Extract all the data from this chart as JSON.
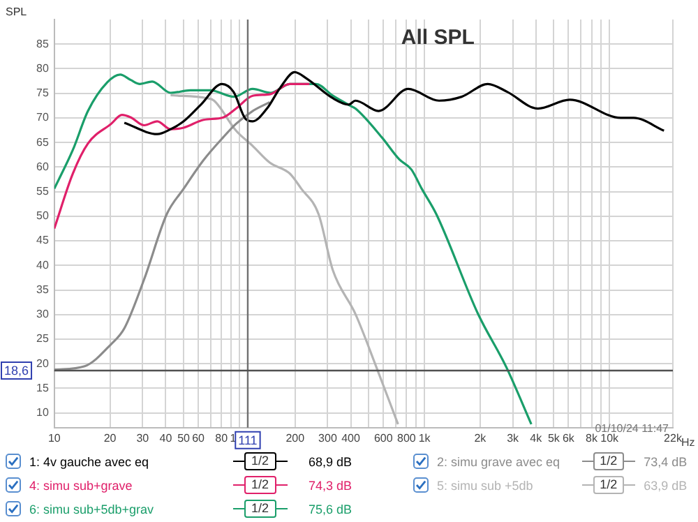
{
  "chart_data": {
    "type": "line",
    "title": "All SPL",
    "ylabel": "SPL",
    "log": "x",
    "grid": true,
    "legend": "bottom",
    "marker": "none",
    "line_style": "solid",
    "xlim": [
      10,
      22000
    ],
    "ylim": [
      7,
      90
    ],
    "xticks": [
      10,
      20,
      30,
      40,
      50,
      60,
      {
        "value": 70,
        "label": null
      },
      80,
      {
        "value": 90,
        "label": null
      },
      100,
      200,
      300,
      400,
      {
        "value": 500,
        "label": null
      },
      600,
      {
        "value": 700,
        "label": null
      },
      800,
      {
        "value": 900,
        "label": null
      },
      {
        "value": 1000,
        "label": "1k"
      },
      {
        "value": 2000,
        "label": "2k"
      },
      {
        "value": 3000,
        "label": "3k"
      },
      {
        "value": 4000,
        "label": "4k"
      },
      {
        "value": 5000,
        "label": "5k"
      },
      {
        "value": 6000,
        "label": "6k"
      },
      {
        "value": 7000,
        "label": null
      },
      {
        "value": 8000,
        "label": "8k"
      },
      {
        "value": 9000,
        "label": null
      },
      {
        "value": 10000,
        "label": "10k"
      },
      {
        "value": 22000,
        "label": "22k"
      }
    ],
    "xlabel": "Hz",
    "yticks": [
      10,
      15,
      20,
      25,
      30,
      35,
      40,
      45,
      50,
      55,
      60,
      65,
      70,
      75,
      80,
      85
    ],
    "series": [
      {
        "name": "1: 4v gauche avec eq",
        "color": "#000000",
        "x": [
          23.9,
          36,
          42.5,
          50,
          62,
          80.6,
          93,
          108,
          118,
          141,
          166,
          199,
          231,
          320,
          390,
          424,
          565,
          817,
          1200,
          1590,
          2200,
          2800,
          4100,
          6100,
          11500,
          13500,
          19700
        ],
        "values": [
          69.0,
          66.7,
          67.7,
          69.3,
          72.7,
          76.9,
          75.3,
          69.8,
          69.3,
          71.9,
          76.1,
          79.3,
          78.0,
          74.0,
          72.7,
          73.5,
          71.4,
          75.9,
          73.5,
          74.3,
          76.9,
          75.3,
          71.9,
          73.7,
          70.0,
          70.0,
          67.4
        ]
      },
      {
        "name": "2: simu grave avec eq",
        "color": "#8c8c8c",
        "x": [
          10,
          14.6,
          20.3,
          23.9,
          30.6,
          40.5,
          50,
          64,
          82,
          96,
          118,
          146
        ],
        "values": [
          18.8,
          19.5,
          24.0,
          27.2,
          37.2,
          50.4,
          55.6,
          61.4,
          66.1,
          68.8,
          71.4,
          73.2
        ]
      },
      {
        "name": "4: simu  sub+grave",
        "color": "#e0206a",
        "x": [
          10,
          12.6,
          15.2,
          20.3,
          23.2,
          25.9,
          30.6,
          36,
          42.5,
          50,
          64,
          82,
          96,
          118,
          146,
          187,
          239
        ],
        "values": [
          47.5,
          58.7,
          64.8,
          68.8,
          70.6,
          70.1,
          68.5,
          69.3,
          67.7,
          68.0,
          69.6,
          70.1,
          71.9,
          74.5,
          74.8,
          76.9,
          76.9
        ]
      },
      {
        "name": "5: simu sub +5db",
        "color": "#b4b4b4",
        "x": [
          42.5,
          67,
          73,
          96,
          118,
          146,
          187,
          216,
          268,
          320,
          424,
          550,
          720
        ],
        "values": [
          74.6,
          74.0,
          73.5,
          67.4,
          64.3,
          60.9,
          58.7,
          55.6,
          50.4,
          39.0,
          30.1,
          19.3,
          7.7
        ]
      },
      {
        "name": "6: simu sub+5db+grav",
        "color": "#1a9e6a",
        "x": [
          10,
          12.6,
          15.2,
          19.3,
          22.7,
          25.9,
          29,
          33.8,
          42.5,
          54.4,
          69.6,
          93.5,
          118,
          148,
          187,
          259,
          320,
          410,
          424,
          590,
          730,
          850,
          967,
          1160,
          1950,
          2770,
          3780
        ],
        "values": [
          55.6,
          63.5,
          71.4,
          77.2,
          78.8,
          77.7,
          76.9,
          77.4,
          75.1,
          75.6,
          75.6,
          74.3,
          75.9,
          75.1,
          76.9,
          76.9,
          74.5,
          72.2,
          71.9,
          66.0,
          61.6,
          59.5,
          55.6,
          50.4,
          30.1,
          19.3,
          7.7
        ]
      }
    ],
    "ref_lines": [
      {
        "axis": "x",
        "value": 111,
        "label": "111",
        "color": "#707070"
      },
      {
        "axis": "y",
        "value": 18.6,
        "label": "18,6",
        "color": "#505050"
      }
    ],
    "annotations": [
      "01/10/24 11:47",
      "68,9 dB",
      "73,4 dB",
      "74,3 dB",
      "63,9 dB",
      "75,6 dB",
      "1/2"
    ]
  }
}
